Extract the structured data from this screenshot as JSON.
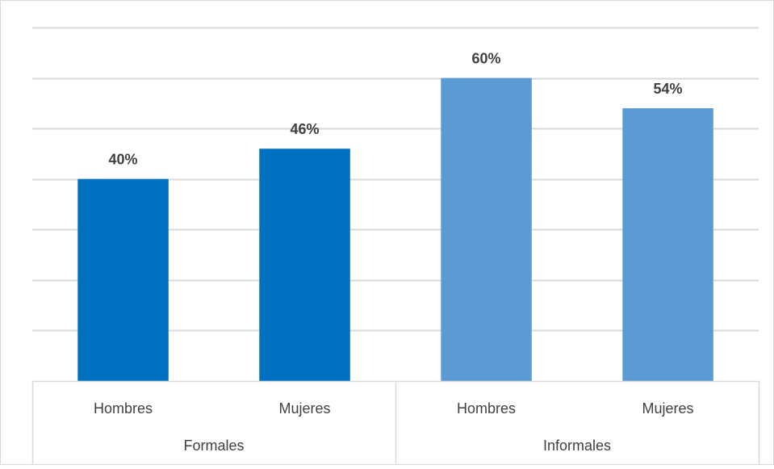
{
  "chart_data": {
    "type": "bar",
    "groups": [
      {
        "label": "Formales",
        "categories": [
          "Hombres",
          "Mujeres"
        ],
        "values": [
          40,
          46
        ],
        "labels": [
          "40%",
          "46%"
        ],
        "color": "#0070C0"
      },
      {
        "label": "Informales",
        "categories": [
          "Hombres",
          "Mujeres"
        ],
        "values": [
          60,
          54
        ],
        "labels": [
          "60%",
          "54%"
        ],
        "color": "#5B9BD5"
      }
    ],
    "ylim": [
      0,
      70
    ],
    "unit": "%",
    "grid": true,
    "legend": "none",
    "title": "",
    "xlabel": "",
    "ylabel": ""
  }
}
